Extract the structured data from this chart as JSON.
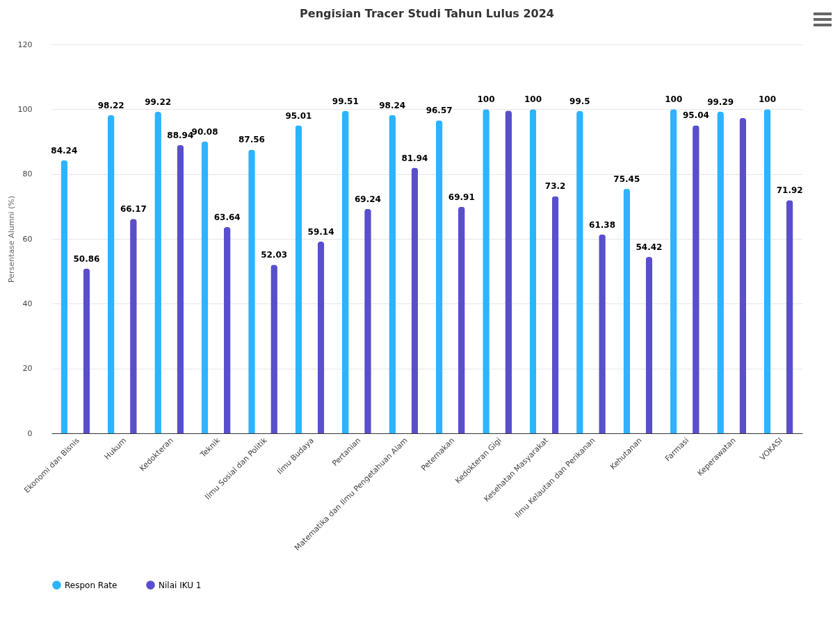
{
  "chart_data": {
    "type": "bar",
    "title": "Pengisian Tracer Studi Tahun Lulus 2024",
    "ylabel": "Persentase Alumni (%)",
    "categories": [
      "Ekonomi dan Bisnis",
      "Hukum",
      "Kedokteran",
      "Teknik",
      "Ilmu Sosial dan Politik",
      "Ilmu Budaya",
      "Pertanian",
      "Matematika dan Ilmu Pengetahuan Alam",
      "Peternakan",
      "Kedokteran Gigi",
      "Kesehatan Masyarakat",
      "Ilmu Kelautan dan Perikanan",
      "Kehutanan",
      "Farmasi",
      "Keperawatan",
      "VOKASI"
    ],
    "series": [
      {
        "name": "Respon Rate",
        "color": "#2db3ff",
        "values": [
          84.24,
          98.22,
          99.22,
          90.08,
          87.56,
          95.01,
          99.51,
          98.24,
          96.57,
          100,
          100,
          99.5,
          75.45,
          100,
          99.29,
          100
        ],
        "value_labels": [
          "84.24",
          "98.22",
          "99.22",
          "90.08",
          "87.56",
          "95.01",
          "99.51",
          "98.24",
          "96.57",
          "100",
          "100",
          "99.5",
          "75.45",
          "100",
          "99.29",
          "100"
        ]
      },
      {
        "name": "Nilai IKU 1",
        "color": "#594fcd",
        "values": [
          50.86,
          66.17,
          88.94,
          63.64,
          52.03,
          59.14,
          69.24,
          81.94,
          69.91,
          99.6,
          73.2,
          61.38,
          54.42,
          95.04,
          97.3,
          71.92
        ],
        "value_labels": [
          "50.86",
          "66.17",
          "88.94",
          "63.64",
          "52.03",
          "59.14",
          "69.24",
          "81.94",
          "69.91",
          null,
          "73.2",
          "61.38",
          "54.42",
          "95.04",
          null,
          "71.92"
        ]
      }
    ],
    "ylim": [
      0,
      120
    ],
    "yticks": [
      0,
      20,
      40,
      60,
      80,
      100,
      120
    ],
    "grid": "y",
    "legend": "bottom"
  }
}
